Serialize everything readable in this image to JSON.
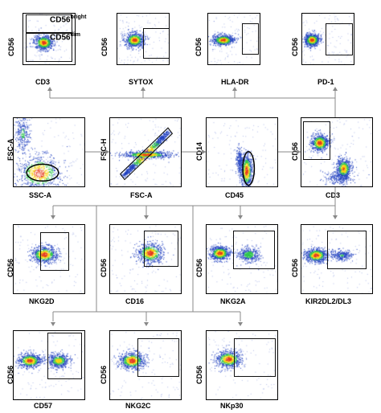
{
  "annotations": {
    "bright_base": "CD56",
    "bright_sup": "bright",
    "dim_base": "CD56",
    "dim_sup": "dim"
  },
  "panels": [
    {
      "id": "p1",
      "x": "CD3",
      "y": "CD56"
    },
    {
      "id": "p2",
      "x": "SYTOX",
      "y": "CD56"
    },
    {
      "id": "p3",
      "x": "HLA-DR",
      "y": "CD56"
    },
    {
      "id": "p4",
      "x": "PD-1",
      "y": "CD56"
    },
    {
      "id": "p5",
      "x": "SSC-A",
      "y": "FSC-A"
    },
    {
      "id": "p6",
      "x": "FSC-A",
      "y": "FSC-H"
    },
    {
      "id": "p7",
      "x": "CD45",
      "y": "CD14"
    },
    {
      "id": "p8",
      "x": "CD3",
      "y": "CD56"
    },
    {
      "id": "p9",
      "x": "NKG2D",
      "y": "CD56"
    },
    {
      "id": "p10",
      "x": "CD16",
      "y": "CD56"
    },
    {
      "id": "p11",
      "x": "NKG2A",
      "y": "CD56"
    },
    {
      "id": "p12",
      "x": "KIR2DL2/DL3",
      "y": "CD56"
    },
    {
      "id": "p13",
      "x": "CD57",
      "y": "CD56"
    },
    {
      "id": "p14",
      "x": "NKG2C",
      "y": "CD56"
    },
    {
      "id": "p15",
      "x": "NKp30",
      "y": "CD56"
    }
  ],
  "colors": {
    "line": "#888888",
    "blob_low": "#1f3fbf",
    "blob_mid": "#29c44a",
    "blob_high": "#f5d30f",
    "blob_peak": "#e53a1c"
  }
}
